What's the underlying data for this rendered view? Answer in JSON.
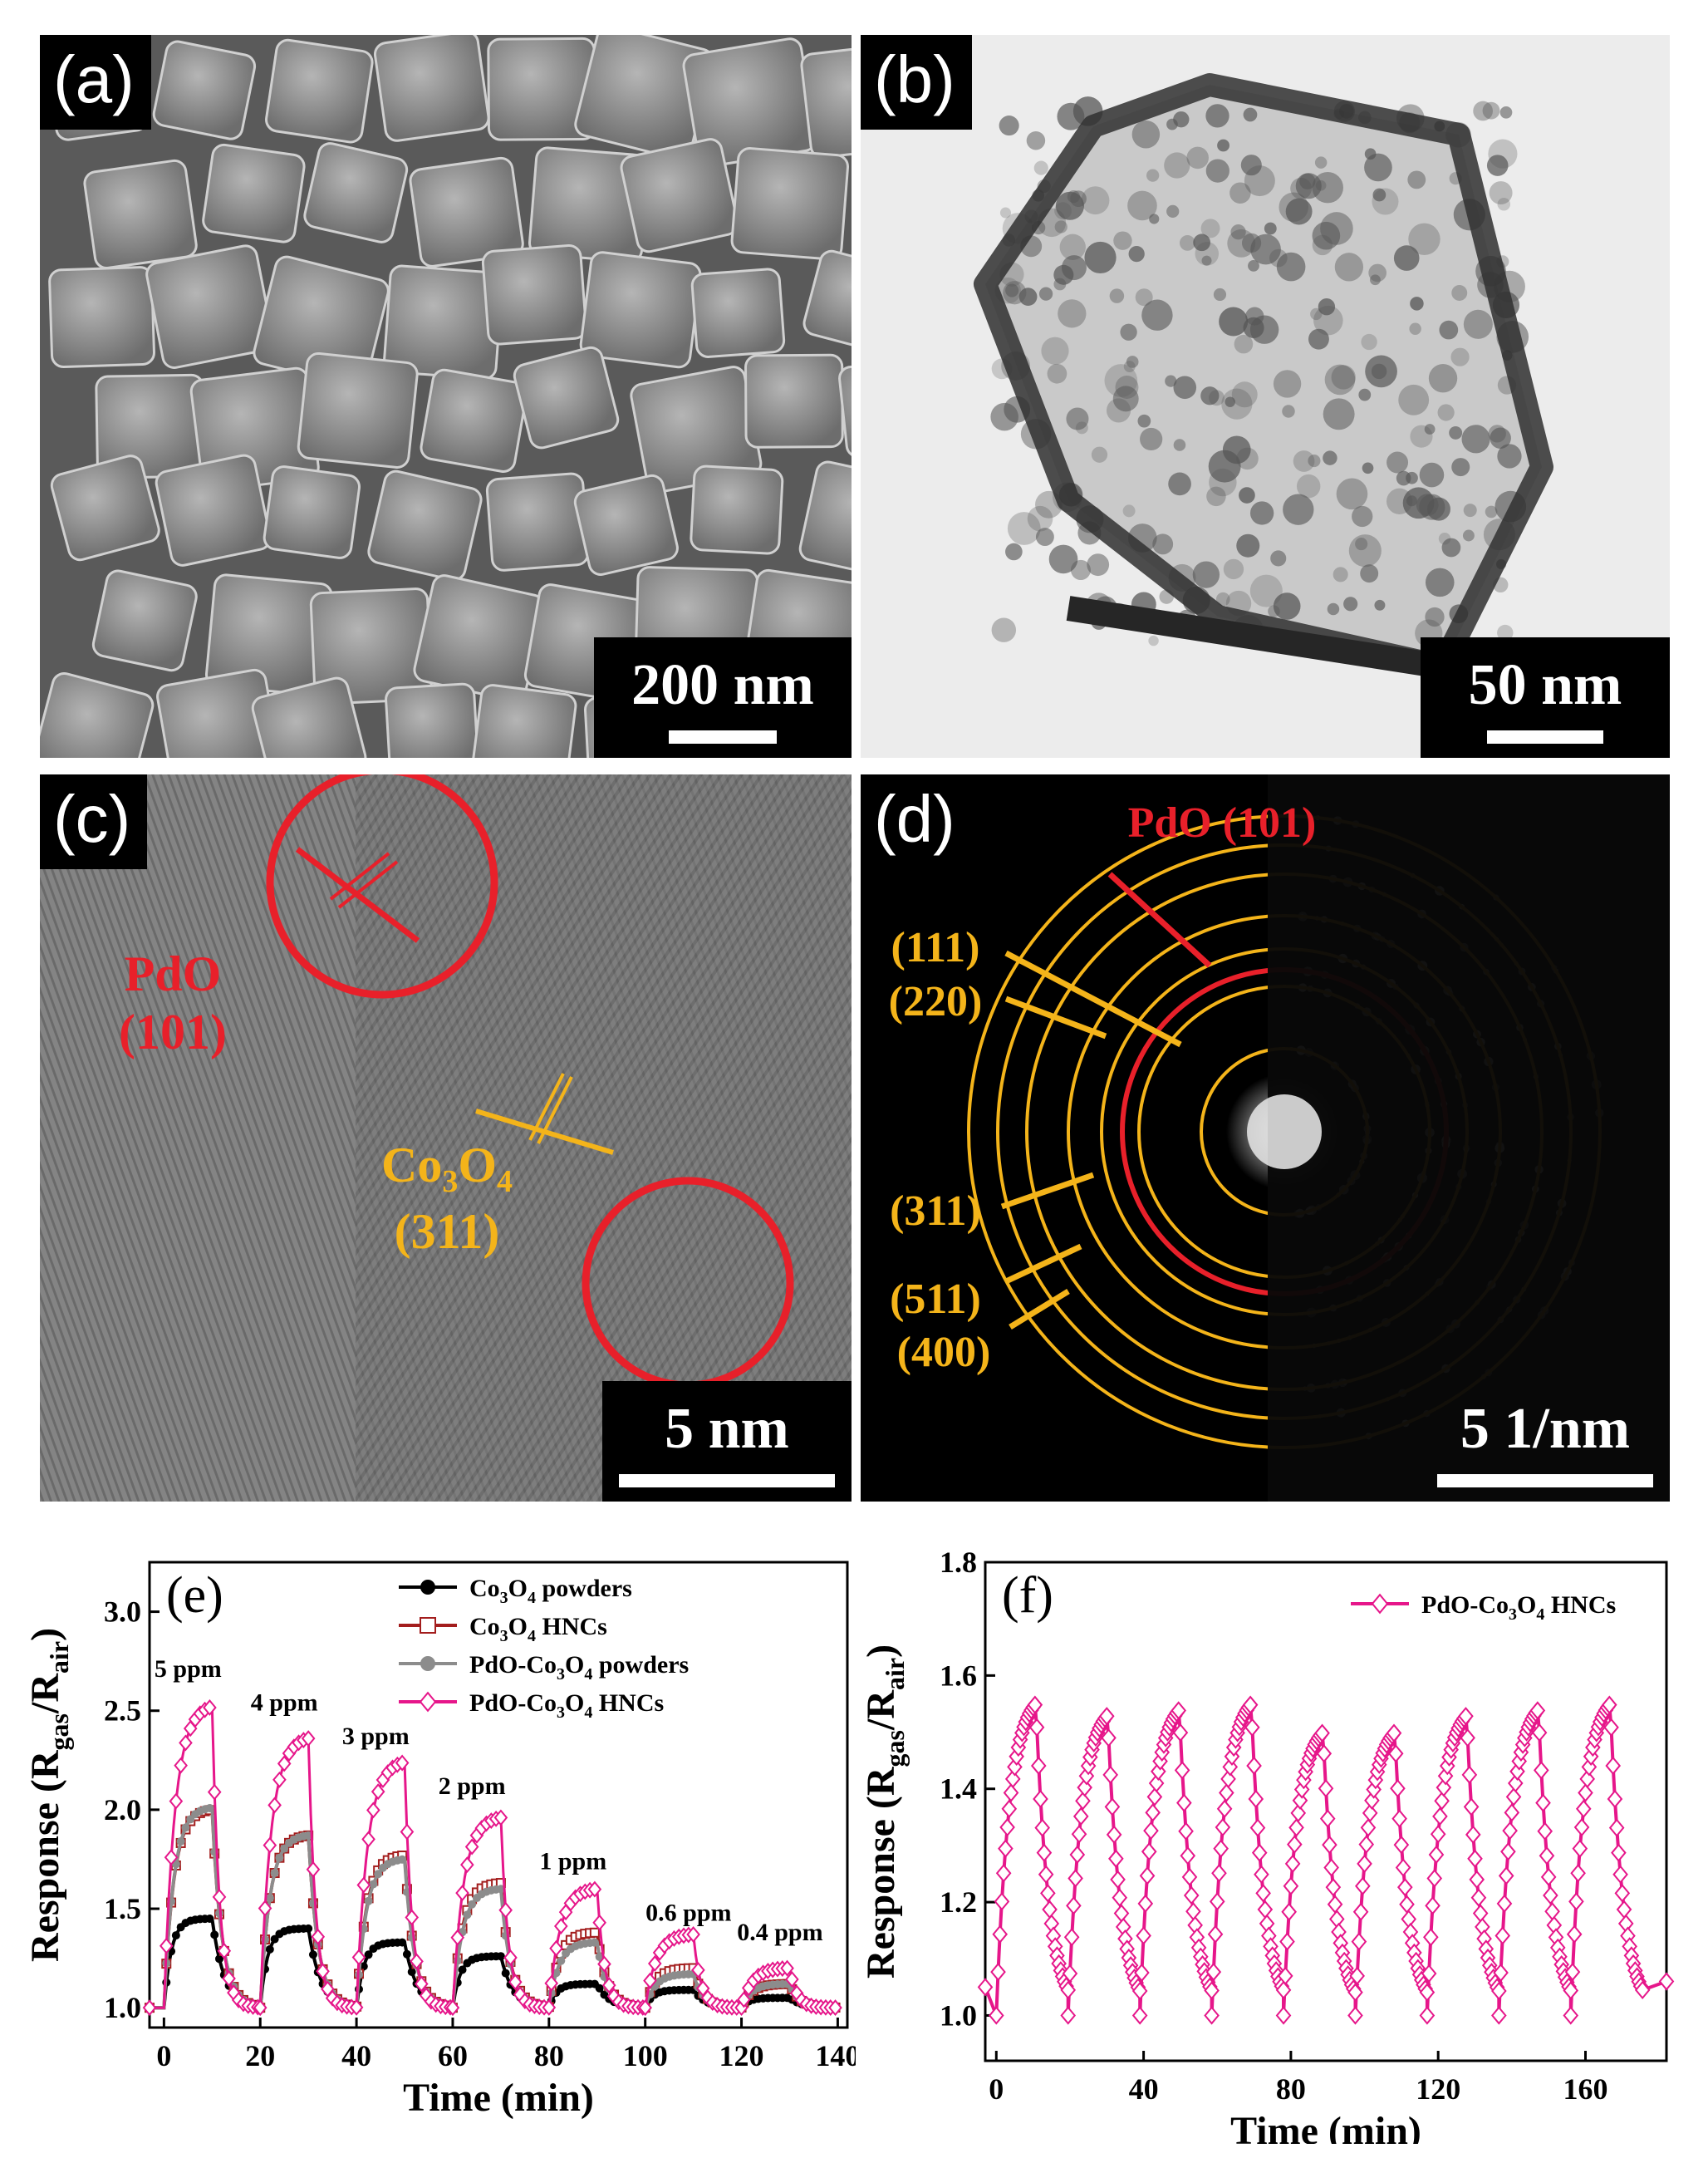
{
  "panels": {
    "a": {
      "label": "(a)",
      "scale": "200 nm"
    },
    "b": {
      "label": "(b)",
      "scale": "50 nm"
    },
    "c": {
      "label": "(c)",
      "scale": "5 nm",
      "pdo_line1": "PdO",
      "pdo_line2": "(101)",
      "co_line1": "Co",
      "co_sub1": "3",
      "co_mid": "O",
      "co_sub2": "4",
      "co_line2": "(311)"
    },
    "d": {
      "label": "(d)",
      "scale": "5 1/nm",
      "pdo": "PdO (101)",
      "rings": [
        "(111)",
        "(220)",
        "(311)",
        "(511)",
        "(400)"
      ]
    }
  },
  "colors": {
    "red": "#e8202a",
    "yellow": "#f4b41a",
    "pink": "#e6168a",
    "gray": "#8c8c8c",
    "darkred": "#a31d1d",
    "black": "#000000"
  },
  "chart_data": [
    {
      "panel": "(e)",
      "type": "line",
      "xlabel": "Time (min)",
      "ylabel_main": "Response (R",
      "ylabel_sub1": "gas",
      "ylabel_mid": "/R",
      "ylabel_sub2": "air",
      "ylabel_end": ")",
      "xlim": [
        -3,
        142
      ],
      "ylim": [
        0.9,
        3.25
      ],
      "xticks": [
        0,
        20,
        40,
        60,
        80,
        100,
        120,
        140
      ],
      "yticks": [
        1.0,
        1.5,
        2.0,
        2.5,
        3.0
      ],
      "ytick_labels": [
        "1.0",
        "1.5",
        "2.0",
        "2.5",
        "3.0"
      ],
      "legend": [
        {
          "pre": "Co",
          "s1": "3",
          "mid": "O",
          "s2": "4",
          "post": " powders",
          "color": "#000000",
          "marker": "circle-filled"
        },
        {
          "pre": "Co",
          "s1": "3",
          "mid": "O",
          "s2": "4",
          "post": " HNCs",
          "color": "#a31d1d",
          "marker": "square-open"
        },
        {
          "pre": "PdO-Co",
          "s1": "3",
          "mid": "O",
          "s2": "4",
          "post": " powders",
          "color": "#8c8c8c",
          "marker": "circle-filled"
        },
        {
          "pre": "PdO-Co",
          "s1": "3",
          "mid": "O",
          "s2": "4",
          "post": " HNCs",
          "color": "#e6168a",
          "marker": "diamond-open"
        }
      ],
      "legend_position": "top-center",
      "annotations": [
        {
          "text": "5 ppm",
          "x": 5,
          "y": 2.67
        },
        {
          "text": "4 ppm",
          "x": 25,
          "y": 2.5
        },
        {
          "text": "3 ppm",
          "x": 44,
          "y": 2.33
        },
        {
          "text": "2 ppm",
          "x": 64,
          "y": 2.08
        },
        {
          "text": "1 ppm",
          "x": 85,
          "y": 1.7
        },
        {
          "text": "0.6 ppm",
          "x": 109,
          "y": 1.44
        },
        {
          "text": "0.4 ppm",
          "x": 128,
          "y": 1.34
        }
      ],
      "pulses": [
        {
          "ppm": "5 ppm",
          "on": 0,
          "off": 10
        },
        {
          "ppm": "4 ppm",
          "on": 20,
          "off": 30
        },
        {
          "ppm": "3 ppm",
          "on": 40,
          "off": 50
        },
        {
          "ppm": "2 ppm",
          "on": 60,
          "off": 70
        },
        {
          "ppm": "1 ppm",
          "on": 80,
          "off": 90
        },
        {
          "ppm": "0.6 ppm",
          "on": 100,
          "off": 110
        },
        {
          "ppm": "0.4 ppm",
          "on": 120,
          "off": 130
        }
      ],
      "series": [
        {
          "name": "Co3O4 powders",
          "peaks": [
            1.45,
            1.4,
            1.33,
            1.26,
            1.12,
            1.09,
            1.05
          ]
        },
        {
          "name": "Co3O4 HNCs",
          "peaks": [
            2.0,
            1.87,
            1.77,
            1.63,
            1.38,
            1.2,
            1.12
          ]
        },
        {
          "name": "PdO-Co3O4 powders",
          "peaks": [
            2.01,
            1.87,
            1.75,
            1.6,
            1.33,
            1.17,
            1.12
          ]
        },
        {
          "name": "PdO-Co3O4 HNCs",
          "peaks": [
            2.52,
            2.36,
            2.24,
            1.96,
            1.6,
            1.37,
            1.2
          ]
        }
      ]
    },
    {
      "panel": "(f)",
      "type": "line",
      "xlabel": "Time (min)",
      "ylabel_main": "Response (R",
      "ylabel_sub1": "gas",
      "ylabel_mid": "/R",
      "ylabel_sub2": "air",
      "ylabel_end": ")",
      "xlim": [
        -3,
        182
      ],
      "ylim": [
        0.92,
        1.8
      ],
      "xticks": [
        0,
        40,
        80,
        120,
        160
      ],
      "yticks": [
        1.0,
        1.2,
        1.4,
        1.6,
        1.8
      ],
      "ytick_labels": [
        "1.0",
        "1.2",
        "1.4",
        "1.6",
        "1.8"
      ],
      "legend": [
        {
          "pre": "PdO-Co",
          "s1": "3",
          "mid": "O",
          "s2": "4",
          "post": " HNCs",
          "color": "#e6168a",
          "marker": "diamond-open"
        }
      ],
      "legend_position": "top-right",
      "cycles": 9,
      "period": 19.5,
      "base": 1.0,
      "peaks": [
        1.55,
        1.53,
        1.54,
        1.55,
        1.5,
        1.5,
        1.53,
        1.54,
        1.55
      ],
      "series": [
        {
          "name": "PdO-Co3O4 HNCs"
        }
      ]
    }
  ]
}
